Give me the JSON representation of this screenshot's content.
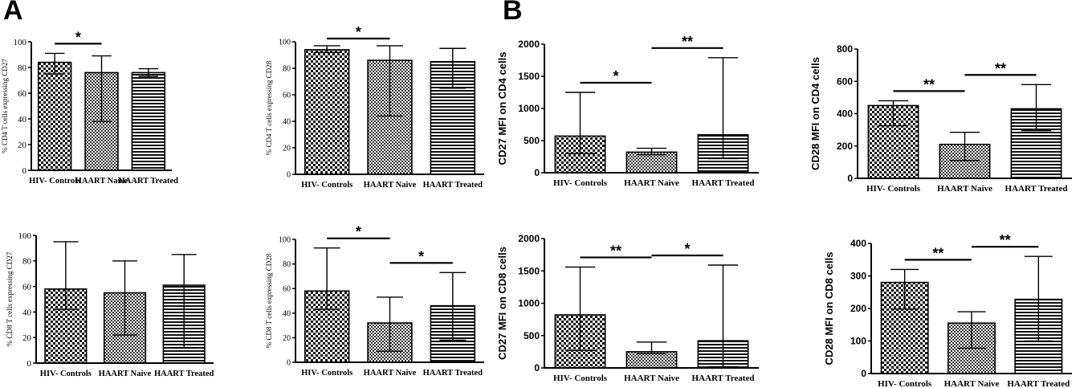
{
  "panel_labels": [
    "A",
    "B"
  ],
  "chart_data": [
    {
      "type": "bar",
      "categories": [
        "HIV- Controls",
        "HAART Naive",
        "HAART Treated"
      ],
      "values": [
        84,
        76,
        76
      ],
      "error_high": [
        91,
        89,
        79
      ],
      "error_low": [
        75,
        38,
        73
      ],
      "ylabel": "% CD4 T cells expressing CD27",
      "ylim": [
        0,
        100
      ],
      "yticks": [
        0,
        20,
        40,
        60,
        80,
        100
      ],
      "significance": [
        {
          "from": 0,
          "to": 1,
          "label": "*"
        }
      ]
    },
    {
      "type": "bar",
      "categories": [
        "HIV- Controls",
        "HAART Naive",
        "HAART Treated"
      ],
      "values": [
        94,
        86,
        85
      ],
      "error_high": [
        97,
        97,
        95
      ],
      "error_low": [
        92,
        44,
        65
      ],
      "ylabel": "% CD4 T cells expressing CD28",
      "ylim": [
        0,
        100
      ],
      "yticks": [
        0,
        20,
        40,
        60,
        80,
        100
      ],
      "significance": [
        {
          "from": 0,
          "to": 1,
          "label": "*"
        }
      ]
    },
    {
      "type": "bar",
      "categories": [
        "HIV- Controls",
        "HAART Naive",
        "HAART Treated"
      ],
      "values": [
        570,
        320,
        590
      ],
      "error_high": [
        1250,
        380,
        1790
      ],
      "error_low": [
        300,
        280,
        220
      ],
      "ylabel": "CD27 MFI on CD4 cells",
      "ylim": [
        0,
        2000
      ],
      "yticks": [
        0,
        500,
        1000,
        1500,
        2000
      ],
      "significance": [
        {
          "from": 0,
          "to": 1,
          "label": "*"
        },
        {
          "from": 1,
          "to": 2,
          "label": "**"
        }
      ]
    },
    {
      "type": "bar",
      "categories": [
        "HIV- Controls",
        "HAART Naive",
        "HAART Treated"
      ],
      "values": [
        450,
        210,
        430
      ],
      "error_high": [
        480,
        285,
        580
      ],
      "error_low": [
        325,
        110,
        295
      ],
      "ylabel": "CD28 MFI on CD4 cells",
      "ylim": [
        0,
        800
      ],
      "yticks": [
        0,
        200,
        400,
        600,
        800
      ],
      "significance": [
        {
          "from": 0,
          "to": 1,
          "label": "**"
        },
        {
          "from": 1,
          "to": 2,
          "label": "**"
        }
      ]
    },
    {
      "type": "bar",
      "categories": [
        "HIV- Controls",
        "HAART Naive",
        "HAART Treated"
      ],
      "values": [
        58,
        55,
        61
      ],
      "error_high": [
        95,
        80,
        85
      ],
      "error_low": [
        42,
        22,
        12
      ],
      "ylabel": "% CD8 T cells expressing CD27",
      "ylim": [
        0,
        100
      ],
      "yticks": [
        0,
        20,
        40,
        60,
        80,
        100
      ],
      "significance": []
    },
    {
      "type": "bar",
      "categories": [
        "HIV- Controls",
        "HAART Naive",
        "HAART Treated"
      ],
      "values": [
        58,
        32,
        46
      ],
      "error_high": [
        93,
        53,
        73
      ],
      "error_low": [
        43,
        9,
        18
      ],
      "ylabel": "% CD8 T cells expressing CD28",
      "ylim": [
        0,
        100
      ],
      "yticks": [
        0,
        20,
        40,
        60,
        80,
        100
      ],
      "significance": [
        {
          "from": 0,
          "to": 1,
          "label": "*"
        },
        {
          "from": 1,
          "to": 2,
          "label": "*"
        }
      ]
    },
    {
      "type": "bar",
      "categories": [
        "HIV- Controls",
        "HAART Naive",
        "HAART Treated"
      ],
      "values": [
        820,
        250,
        420
      ],
      "error_high": [
        1560,
        400,
        1590
      ],
      "error_low": [
        270,
        220,
        20
      ],
      "ylabel": "CD27 MFI on CD8 cells",
      "ylim": [
        0,
        2000
      ],
      "yticks": [
        0,
        500,
        1000,
        1500,
        2000
      ],
      "significance": [
        {
          "from": 0,
          "to": 1,
          "label": "**"
        },
        {
          "from": 1,
          "to": 2,
          "label": "*"
        }
      ]
    },
    {
      "type": "bar",
      "categories": [
        "HIV- Controls",
        "HAART Naive",
        "HAART Treated"
      ],
      "values": [
        280,
        155,
        228
      ],
      "error_high": [
        320,
        190,
        360
      ],
      "error_low": [
        198,
        78,
        100
      ],
      "ylabel": "CD28 MFI on CD8 cells",
      "ylim": [
        0,
        400
      ],
      "yticks": [
        0,
        100,
        200,
        300,
        400
      ],
      "significance": [
        {
          "from": 0,
          "to": 1,
          "label": "**"
        },
        {
          "from": 1,
          "to": 2,
          "label": "**"
        }
      ]
    }
  ]
}
